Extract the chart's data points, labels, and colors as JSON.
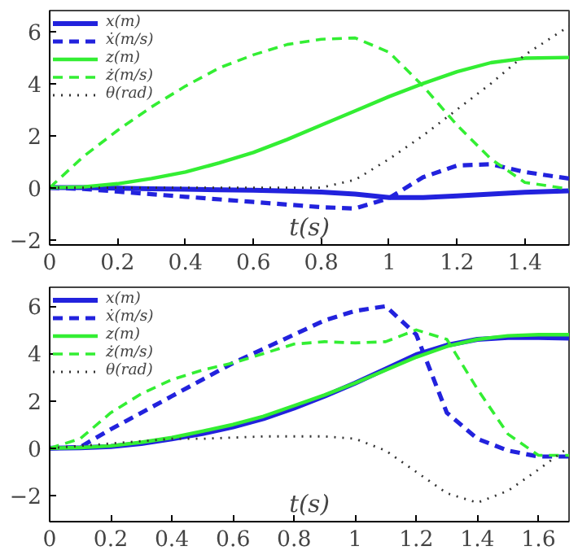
{
  "chart_data": [
    {
      "type": "line",
      "xlabel": "t(s)",
      "xlim": [
        0,
        1.53
      ],
      "ylim": [
        -2.2,
        6.8
      ],
      "xticks": [
        0,
        0.2,
        0.4,
        0.6,
        0.8,
        1,
        1.2,
        1.4
      ],
      "yticks": [
        -2,
        0,
        2,
        4,
        6
      ],
      "grid": false,
      "legend": "top left",
      "x": [
        0,
        0.1,
        0.2,
        0.3,
        0.4,
        0.5,
        0.6,
        0.7,
        0.8,
        0.9,
        1.0,
        1.1,
        1.2,
        1.3,
        1.4,
        1.53
      ],
      "series": [
        {
          "name": "x(m)",
          "color": "#2222dd",
          "line_style": "solid",
          "values": [
            0,
            0,
            -0.02,
            -0.04,
            -0.06,
            -0.08,
            -0.1,
            -0.13,
            -0.17,
            -0.25,
            -0.38,
            -0.38,
            -0.32,
            -0.25,
            -0.18,
            -0.12
          ]
        },
        {
          "name": "ẋ(m/s)",
          "color": "#2222dd",
          "line_style": "dashed",
          "values": [
            0,
            -0.05,
            -0.15,
            -0.25,
            -0.35,
            -0.45,
            -0.55,
            -0.65,
            -0.75,
            -0.8,
            -0.4,
            0.4,
            0.85,
            0.9,
            0.6,
            0.35
          ]
        },
        {
          "name": "z(m)",
          "color": "#33ee33",
          "line_style": "solid",
          "values": [
            0,
            0.03,
            0.15,
            0.35,
            0.6,
            0.95,
            1.35,
            1.85,
            2.4,
            2.95,
            3.5,
            4.0,
            4.45,
            4.8,
            4.97,
            5.0
          ]
        },
        {
          "name": "ż(m/s)",
          "color": "#33ee33",
          "line_style": "dashed",
          "values": [
            0,
            1.2,
            2.2,
            3.1,
            3.9,
            4.6,
            5.1,
            5.5,
            5.7,
            5.75,
            5.2,
            3.9,
            2.4,
            1.1,
            0.2,
            -0.05
          ]
        },
        {
          "name": "θ(rad)",
          "color": "#333333",
          "line_style": "dotted",
          "values": [
            0,
            0,
            0,
            0,
            0,
            0,
            0,
            0,
            0,
            0.3,
            1.1,
            2.0,
            3.0,
            4.0,
            5.1,
            6.2
          ]
        }
      ]
    },
    {
      "type": "line",
      "xlabel": "t(s)",
      "xlim": [
        0,
        1.7
      ],
      "ylim": [
        -3.1,
        6.8
      ],
      "xticks": [
        0,
        0.2,
        0.4,
        0.6,
        0.8,
        1,
        1.2,
        1.4,
        1.6
      ],
      "yticks": [
        -2,
        0,
        2,
        4,
        6
      ],
      "grid": false,
      "legend": "top left",
      "x": [
        0,
        0.1,
        0.2,
        0.3,
        0.4,
        0.5,
        0.6,
        0.7,
        0.8,
        0.9,
        1.0,
        1.1,
        1.2,
        1.3,
        1.4,
        1.5,
        1.6,
        1.7
      ],
      "series": [
        {
          "name": "x(m)",
          "color": "#2222dd",
          "line_style": "solid",
          "values": [
            0,
            0.02,
            0.07,
            0.2,
            0.4,
            0.62,
            0.9,
            1.25,
            1.7,
            2.2,
            2.75,
            3.35,
            3.95,
            4.35,
            4.6,
            4.68,
            4.68,
            4.65
          ]
        },
        {
          "name": "ẋ(m/s)",
          "color": "#2222dd",
          "line_style": "dashed",
          "values": [
            0,
            0.05,
            0.8,
            1.5,
            2.2,
            2.9,
            3.6,
            4.2,
            4.8,
            5.4,
            5.8,
            6.0,
            4.8,
            1.5,
            0.4,
            -0.1,
            -0.35,
            -0.35
          ]
        },
        {
          "name": "z(m)",
          "color": "#33ee33",
          "line_style": "solid",
          "values": [
            0,
            0.03,
            0.1,
            0.25,
            0.45,
            0.72,
            1.0,
            1.35,
            1.8,
            2.25,
            2.75,
            3.3,
            3.85,
            4.3,
            4.6,
            4.75,
            4.8,
            4.8
          ]
        },
        {
          "name": "ż(m/s)",
          "color": "#33ee33",
          "line_style": "dashed",
          "values": [
            0,
            0.4,
            1.5,
            2.3,
            2.9,
            3.3,
            3.6,
            4.0,
            4.4,
            4.5,
            4.45,
            4.5,
            5.0,
            4.6,
            2.5,
            0.6,
            -0.3,
            -0.3
          ]
        },
        {
          "name": "θ(rad)",
          "color": "#333333",
          "line_style": "dotted",
          "values": [
            0,
            0.1,
            0.2,
            0.3,
            0.4,
            0.4,
            0.45,
            0.5,
            0.5,
            0.5,
            0.4,
            -0.1,
            -1.0,
            -1.9,
            -2.3,
            -1.8,
            -0.9,
            0.05
          ]
        }
      ]
    }
  ]
}
